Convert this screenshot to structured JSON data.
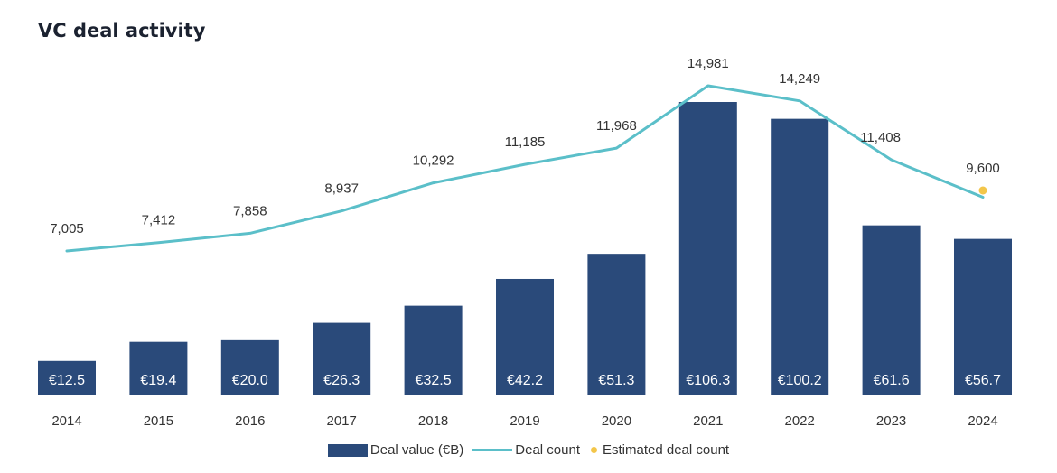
{
  "chart_data": {
    "type": "bar+line",
    "title": "VC deal activity",
    "categories": [
      "2014",
      "2015",
      "2016",
      "2017",
      "2018",
      "2019",
      "2020",
      "2021",
      "2022",
      "2023",
      "2024"
    ],
    "series": [
      {
        "name": "Deal value (€B)",
        "type": "bar",
        "values": [
          12.5,
          19.4,
          20.0,
          26.3,
          32.5,
          42.2,
          51.3,
          106.3,
          100.2,
          61.6,
          56.7
        ],
        "labels": [
          "€12.5",
          "€19.4",
          "€20.0",
          "€26.3",
          "€32.5",
          "€42.2",
          "€51.3",
          "€106.3",
          "€100.2",
          "€61.6",
          "€56.7"
        ],
        "color": "#2a4a7a"
      },
      {
        "name": "Deal count",
        "type": "line",
        "values": [
          7005,
          7412,
          7858,
          8937,
          10292,
          11185,
          11968,
          14981,
          14249,
          11408,
          9600
        ],
        "labels": [
          "7,005",
          "7,412",
          "7,858",
          "8,937",
          "10,292",
          "11,185",
          "11,968",
          "14,981",
          "14,249",
          "11,408",
          "9,600"
        ],
        "color": "#5bbfc9"
      }
    ],
    "estimated_deal_count": {
      "name": "Estimated deal count",
      "category": "2024",
      "color": "#f3c64a"
    },
    "legend_position": "bottom-center",
    "grid": false
  }
}
